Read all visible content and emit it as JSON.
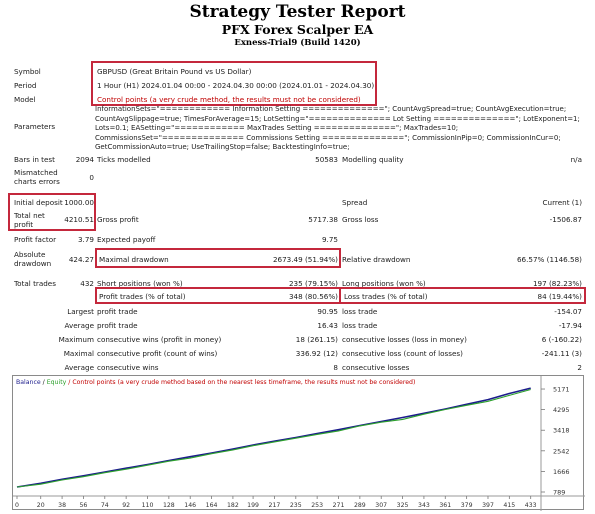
{
  "header": {
    "title": "Strategy Tester Report",
    "subtitle": "PFX Forex Scalper EA",
    "server": "Exness-Trial9 (Build 1420)"
  },
  "info": {
    "symbol_label": "Symbol",
    "symbol_value": "GBPUSD (Great Britain Pound vs US Dollar)",
    "period_label": "Period",
    "period_value": "1 Hour (H1) 2024.01.04 00:00 - 2024.04.30 00:00 (2024.01.01 - 2024.04.30)",
    "model_label": "Model",
    "model_value": "Control points (a very crude method, the results must not be considered)",
    "parameters_label": "Parameters",
    "parameters_value": "InformationSets=\"============ Information Setting ==============\"; CountAvgSpread=true; CountAvgExecution=true; CountAvgSlippage=true; TimesForAverage=15; LotSetting=\"============== Lot Setting ==============\"; LotExponent=1; Lots=0.1; EASetting=\"============ MaxTrades Setting ==============\"; MaxTrades=10; CommissionsSet=\"============== Commissions Setting ==============\"; CommissionInPip=0; CommissionInCur=0; GetCommissionAuto=true; UseTrailingStop=false; BacktestingInfo=true;"
  },
  "stats": {
    "bars_label": "Bars in test",
    "bars_value": "2094",
    "ticks_label": "Ticks modelled",
    "ticks_value": "50583",
    "quality_label": "Modelling quality",
    "quality_value": "n/a",
    "mismatch_label1": "Mismatched",
    "mismatch_label2": "charts errors",
    "mismatch_value": "0",
    "deposit_label": "Initial deposit",
    "deposit_value": "1000.00",
    "spread_label": "Spread",
    "spread_value": "Current (1)",
    "netprofit_label1": "Total net",
    "netprofit_label2": "profit",
    "netprofit_value": "4210.51",
    "grossprofit_label": "Gross profit",
    "grossprofit_value": "5717.38",
    "grossloss_label": "Gross loss",
    "grossloss_value": "-1506.87",
    "pf_label": "Profit factor",
    "pf_value": "3.79",
    "payoff_label": "Expected payoff",
    "payoff_value": "9.75",
    "absdd_label1": "Absolute",
    "absdd_label2": "drawdown",
    "absdd_value": "424.27",
    "maxdd_label": "Maximal drawdown",
    "maxdd_value": "2673.49 (51.94%)",
    "reldd_label": "Relative drawdown",
    "reldd_value": "66.57% (1146.58)",
    "trades_label": "Total trades",
    "trades_value": "432",
    "short_label": "Short positions (won %)",
    "short_value": "235 (79.15%)",
    "long_label": "Long positions (won %)",
    "long_value": "197 (82.23%)",
    "profittrades_label": "Profit trades (% of total)",
    "profittrades_value": "348 (80.56%)",
    "losstrades_label": "Loss trades (% of total)",
    "losstrades_value": "84 (19.44%)",
    "largest_label": "Largest",
    "avg_label": "Average",
    "max_label": "Maximum",
    "maximal_label": "Maximal",
    "lprofit_label": "profit trade",
    "lprofit_value": "90.95",
    "lloss_label": "loss trade",
    "lloss_value": "-154.07",
    "aprofit_label": "profit trade",
    "aprofit_value": "16.43",
    "aloss_label": "loss trade",
    "aloss_value": "-17.94",
    "mcw_label": "consecutive wins (profit in money)",
    "mcw_value": "18 (261.15)",
    "mcl_label": "consecutive losses (loss in money)",
    "mcl_value": "6 (-160.22)",
    "mcp_label": "consecutive profit (count of wins)",
    "mcp_value": "336.92 (12)",
    "mcloss_label": "consecutive loss (count of losses)",
    "mcloss_value": "-241.11 (3)",
    "acw_label": "consecutive wins",
    "acw_value": "8",
    "acl_label": "consecutive losses",
    "acl_value": "2"
  },
  "chart": {
    "legend_balance": "Balance",
    "legend_sep1": " / ",
    "legend_equity": "Equity",
    "legend_rest": " / Control points (a very crude method based on the nearest less timeframe, the results must not be considered)",
    "balance_color": "#1c1c8c",
    "equity_color": "#2ca02c",
    "y_ticks": [
      "5171",
      "4295",
      "3418",
      "2542",
      "1666",
      "789"
    ],
    "x_ticks": [
      "0",
      "20",
      "38",
      "56",
      "74",
      "92",
      "110",
      "128",
      "146",
      "164",
      "182",
      "199",
      "217",
      "235",
      "253",
      "271",
      "289",
      "307",
      "325",
      "343",
      "361",
      "379",
      "397",
      "415",
      "433"
    ]
  },
  "chart_data": {
    "type": "line",
    "x": [
      0,
      20,
      38,
      56,
      74,
      92,
      110,
      128,
      146,
      164,
      182,
      199,
      217,
      235,
      253,
      271,
      289,
      307,
      325,
      343,
      361,
      379,
      397,
      415,
      433
    ],
    "series": [
      {
        "name": "Balance",
        "values": [
          1000,
          1160,
          1330,
          1480,
          1640,
          1800,
          1960,
          2130,
          2290,
          2450,
          2620,
          2790,
          2950,
          3110,
          3280,
          3440,
          3620,
          3790,
          3960,
          4140,
          4320,
          4520,
          4720,
          4980,
          5210
        ]
      },
      {
        "name": "Equity",
        "values": [
          1000,
          1120,
          1300,
          1440,
          1610,
          1760,
          1930,
          2100,
          2230,
          2420,
          2580,
          2760,
          2920,
          3080,
          3240,
          3390,
          3600,
          3760,
          3880,
          4100,
          4300,
          4480,
          4650,
          4900,
          5150
        ]
      }
    ],
    "ylim": [
      789,
      5300
    ],
    "xlim": [
      0,
      440
    ]
  }
}
